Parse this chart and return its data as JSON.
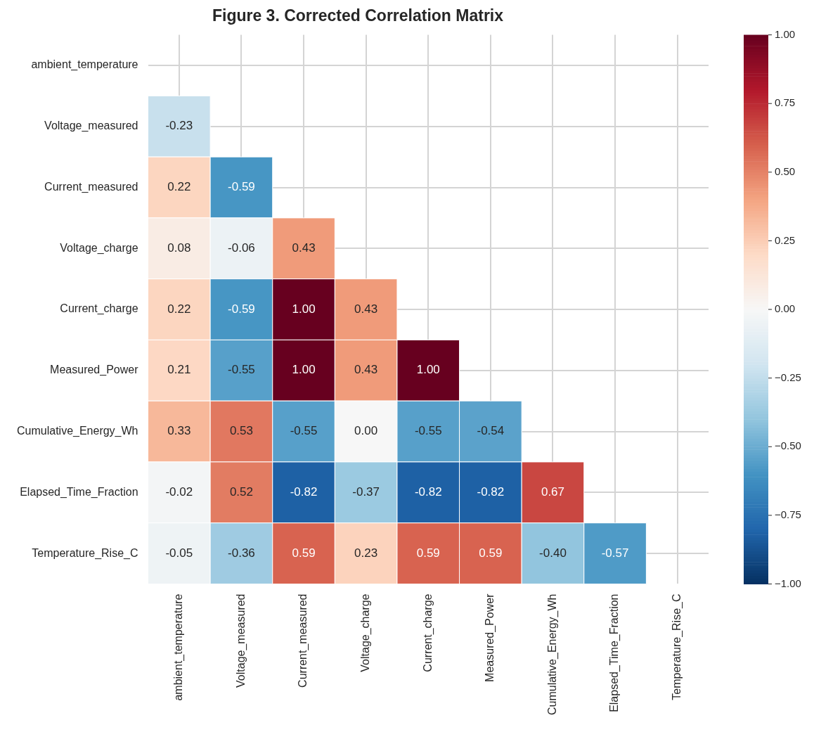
{
  "chart_data": {
    "type": "heatmap",
    "title": "Figure 3. Corrected Correlation Matrix",
    "categories": [
      "ambient_temperature",
      "Voltage_measured",
      "Current_measured",
      "Voltage_charge",
      "Current_charge",
      "Measured_Power",
      "Cumulative_Energy_Wh",
      "Elapsed_Time_Fraction",
      "Temperature_Rise_C"
    ],
    "y_categories": [
      "ambient_temperature",
      "Voltage_measured",
      "Current_measured",
      "Voltage_charge",
      "Current_charge",
      "Measured_Power",
      "Cumulative_Energy_Wh",
      "Elapsed_Time_Fraction",
      "Temperature_Rise_C"
    ],
    "cells": [
      [
        null,
        null,
        null,
        null,
        null,
        null,
        null,
        null,
        null
      ],
      [
        -0.23,
        null,
        null,
        null,
        null,
        null,
        null,
        null,
        null
      ],
      [
        0.22,
        -0.59,
        null,
        null,
        null,
        null,
        null,
        null,
        null
      ],
      [
        0.08,
        -0.06,
        0.43,
        null,
        null,
        null,
        null,
        null,
        null
      ],
      [
        0.22,
        -0.59,
        1.0,
        0.43,
        null,
        null,
        null,
        null,
        null
      ],
      [
        0.21,
        -0.55,
        1.0,
        0.43,
        1.0,
        null,
        null,
        null,
        null
      ],
      [
        0.33,
        0.53,
        -0.55,
        0.0,
        -0.55,
        -0.54,
        null,
        null,
        null
      ],
      [
        -0.02,
        0.52,
        -0.82,
        -0.37,
        -0.82,
        -0.82,
        0.67,
        null,
        null
      ],
      [
        -0.05,
        -0.36,
        0.59,
        0.23,
        0.59,
        0.59,
        -0.4,
        -0.57,
        null
      ]
    ],
    "cell_labels": [
      [
        null,
        null,
        null,
        null,
        null,
        null,
        null,
        null,
        null
      ],
      [
        "-0.23",
        null,
        null,
        null,
        null,
        null,
        null,
        null,
        null
      ],
      [
        "0.22",
        "-0.59",
        null,
        null,
        null,
        null,
        null,
        null,
        null
      ],
      [
        "0.08",
        "-0.06",
        "0.43",
        null,
        null,
        null,
        null,
        null,
        null
      ],
      [
        "0.22",
        "-0.59",
        "1.00",
        "0.43",
        null,
        null,
        null,
        null,
        null
      ],
      [
        "0.21",
        "-0.55",
        "1.00",
        "0.43",
        "1.00",
        null,
        null,
        null,
        null
      ],
      [
        "0.33",
        "0.53",
        "-0.55",
        "0.00",
        "-0.55",
        "-0.54",
        null,
        null,
        null
      ],
      [
        "-0.02",
        "0.52",
        "-0.82",
        "-0.37",
        "-0.82",
        "-0.82",
        "0.67",
        null,
        null
      ],
      [
        "-0.05",
        "-0.36",
        "0.59",
        "0.23",
        "0.59",
        "0.59",
        "-0.40",
        "-0.57",
        null
      ]
    ],
    "clim": [
      -1,
      1
    ],
    "cticks": [
      {
        "value": -1,
        "label": "−1.00"
      },
      {
        "value": -0.75,
        "label": "−0.75"
      },
      {
        "value": -0.5,
        "label": "−0.50"
      },
      {
        "value": -0.25,
        "label": "−0.25"
      },
      {
        "value": 0,
        "label": "0.00"
      },
      {
        "value": 0.25,
        "label": "0.25"
      },
      {
        "value": 0.5,
        "label": "0.50"
      },
      {
        "value": 0.75,
        "label": "0.75"
      },
      {
        "value": 1,
        "label": "1.00"
      }
    ],
    "grid": true
  }
}
